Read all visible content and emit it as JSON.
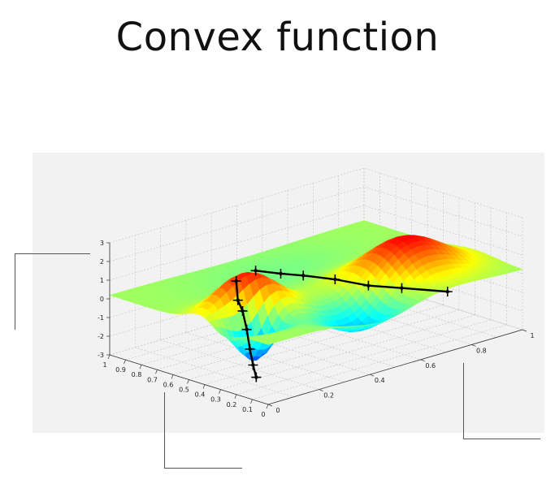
{
  "title": "Convex function",
  "chart_data": {
    "type": "surface",
    "title": "Convex function",
    "x_axis": {
      "ticks": [
        "1",
        "0.9",
        "0.8",
        "0.7",
        "0.6",
        "0.5",
        "0.4",
        "0.3",
        "0.2",
        "0.1",
        "0"
      ],
      "range": [
        0,
        1
      ]
    },
    "y_axis": {
      "ticks": [
        "0",
        "0.2",
        "0.4",
        "0.6",
        "0.8",
        "1"
      ],
      "range": [
        0,
        1
      ]
    },
    "z_axis": {
      "ticks": [
        "3",
        "2",
        "1",
        "0",
        "-1",
        "-2",
        "-3"
      ],
      "range": [
        -3,
        3
      ]
    },
    "grid": true,
    "colormap": "jet",
    "surface_peaks": [
      {
        "x": 0.4,
        "y": 0.15,
        "z": 2.6
      },
      {
        "x": 0.3,
        "y": 0.72,
        "z": 2.2
      }
    ],
    "surface_valleys": [
      {
        "x": 0.3,
        "y": 0.15,
        "z": -3.0
      },
      {
        "x": 0.15,
        "y": 0.45,
        "z": -1.2
      }
    ],
    "paths": [
      {
        "color": "#000000",
        "points": [
          {
            "x": 0.41,
            "y": 0.13,
            "z": 2.0
          },
          {
            "x": 0.4,
            "y": 0.13,
            "z": 1.0
          },
          {
            "x": 0.37,
            "y": 0.13,
            "z": 0.5
          },
          {
            "x": 0.36,
            "y": 0.14,
            "z": -0.5
          },
          {
            "x": 0.34,
            "y": 0.14,
            "z": -1.5
          },
          {
            "x": 0.32,
            "y": 0.14,
            "z": -2.3
          },
          {
            "x": 0.3,
            "y": 0.14,
            "z": -2.9
          }
        ]
      },
      {
        "color": "#000000",
        "points": [
          {
            "x": 0.4,
            "y": 0.2,
            "z": 2.3
          },
          {
            "x": 0.37,
            "y": 0.28,
            "z": 1.9
          },
          {
            "x": 0.34,
            "y": 0.35,
            "z": 1.6
          },
          {
            "x": 0.3,
            "y": 0.45,
            "z": 1.1
          },
          {
            "x": 0.25,
            "y": 0.55,
            "z": 0.5
          },
          {
            "x": 0.2,
            "y": 0.65,
            "z": 0.1
          },
          {
            "x": 0.12,
            "y": 0.78,
            "z": -0.4
          }
        ]
      }
    ]
  }
}
